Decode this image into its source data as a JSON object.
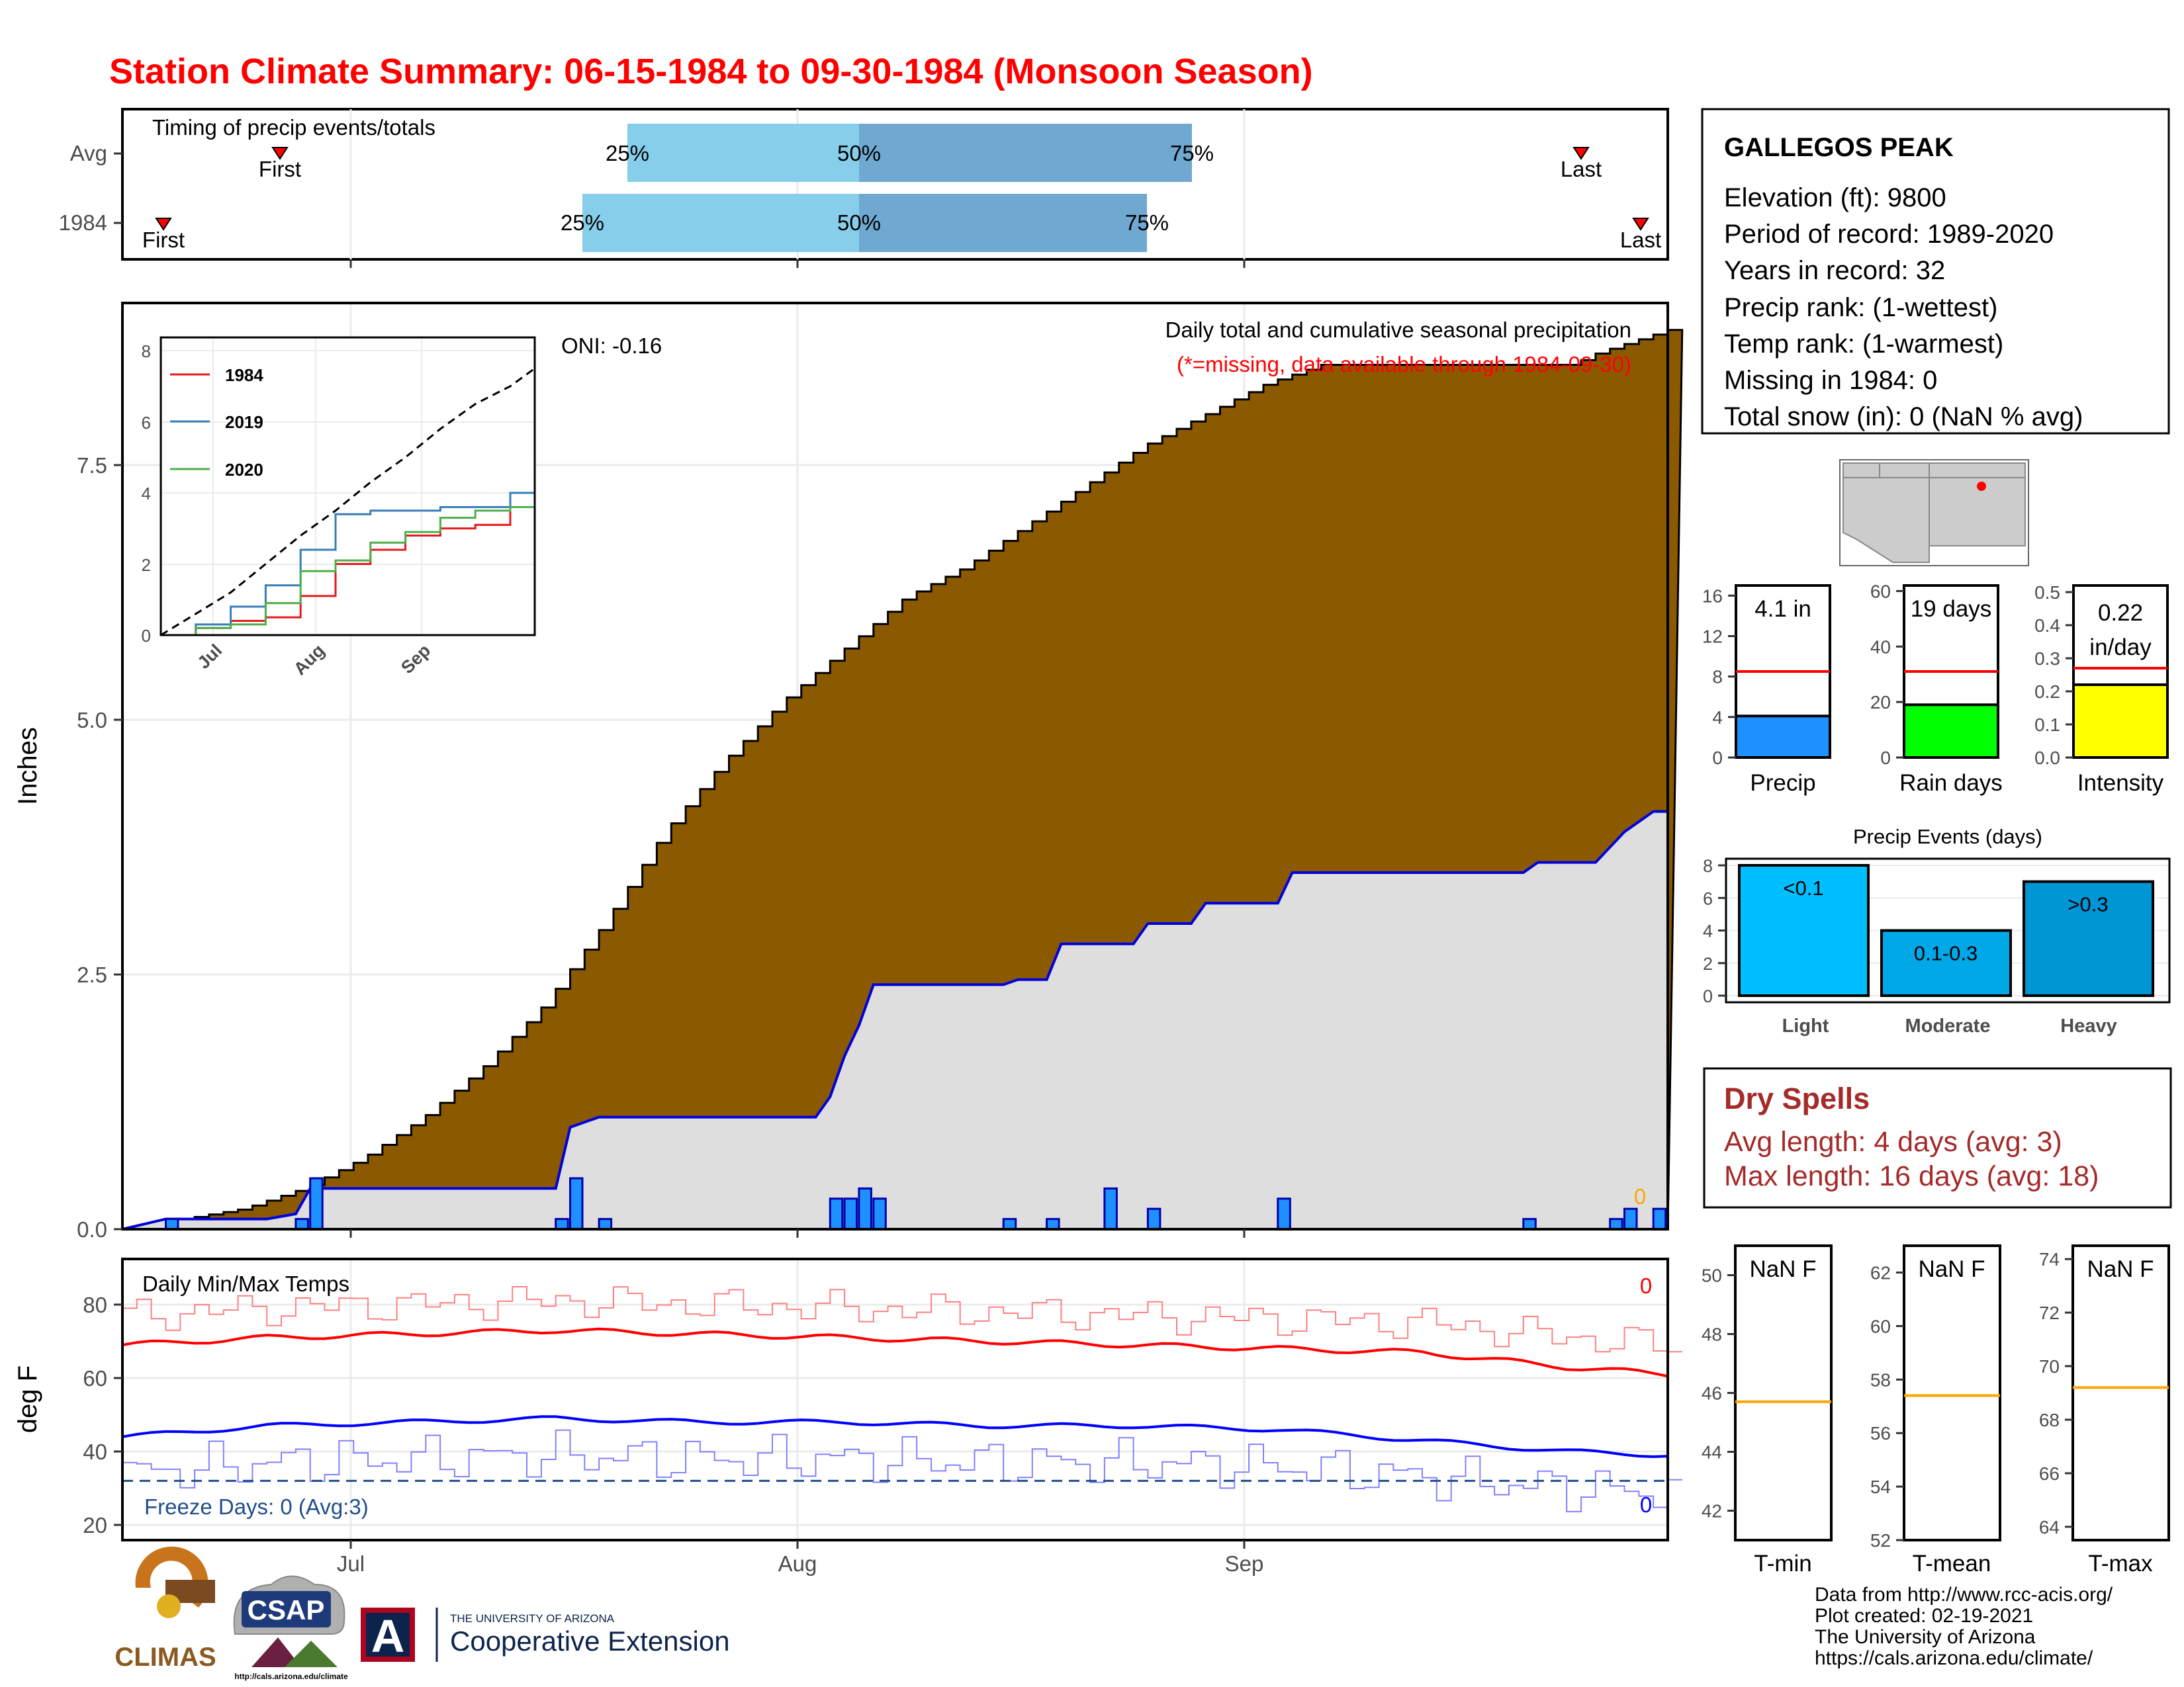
{
  "title": "Station Climate Summary: 06-15-1984 to 09-30-1984 (Monsoon Season)",
  "colors": {
    "title": "#ff0000",
    "cumulative_fill": "#8b5a00",
    "avg_fill": "#dedede",
    "avg_line": "#0000dd",
    "bars": "#1e90ff",
    "timing_light": "#87ceeb",
    "timing_dark": "#6fa8d0",
    "dry_spells": "#a52a2a",
    "tmax": "#ff0000",
    "tmin": "#0000ff",
    "series_1984": "#e41a1c",
    "series_2019": "#377eb8",
    "series_2020": "#4daf4a",
    "precip_bar": "#1e90ff",
    "rain_days_bar": "#00ff00",
    "intensity_bar": "#ffff00",
    "events_light": "#00bfff",
    "events_moderate": "#00a8e8",
    "events_heavy": "#0096d6",
    "temp_avg_line": "#ffa500"
  },
  "timing": {
    "title": "Timing of precip events/totals",
    "rows": [
      {
        "label": "Avg",
        "first": "First",
        "last": "Last",
        "q25": "25%",
        "q50": "50%",
        "q75": "75%"
      },
      {
        "label": "1984",
        "first": "First",
        "last": "Last",
        "q25": "25%",
        "q50": "50%",
        "q75": "75%"
      }
    ]
  },
  "main": {
    "ylabel": "Inches",
    "oni": "ONI: -0.16",
    "note1": "Daily total and cumulative seasonal precipitation",
    "note2": "(*=missing, data available through 1984-09-30)",
    "missing_count": "0",
    "yticks": [
      "0.0",
      "2.5",
      "5.0",
      "7.5"
    ],
    "months": [
      "Jul",
      "Aug",
      "Sep"
    ]
  },
  "inset": {
    "legend": [
      "1984",
      "2019",
      "2020"
    ],
    "yticks": [
      "0",
      "2",
      "4",
      "6",
      "8"
    ],
    "months": [
      "Jul",
      "Aug",
      "Sep"
    ]
  },
  "temps": {
    "title": "Daily Min/Max Temps",
    "ylabel": "deg F",
    "freeze": "Freeze Days: 0 (Avg:3)",
    "yticks": [
      "20",
      "40",
      "60",
      "80"
    ],
    "max_missing": "0",
    "min_missing": "0",
    "months": [
      "Jul",
      "Aug",
      "Sep"
    ]
  },
  "station": {
    "name": "GALLEGOS PEAK",
    "lines": [
      "Elevation (ft): 9800",
      "Period of record: 1989-2020",
      "Years in record: 32",
      "Precip rank:  (1-wettest)",
      "Temp rank:  (1-warmest)",
      "Missing in 1984: 0",
      "Total snow (in): 0 (NaN % avg)"
    ]
  },
  "mini_bars": [
    {
      "label": "Precip",
      "value_text": "4.1 in",
      "yticks": [
        "0",
        "4",
        "8",
        "12",
        "16"
      ]
    },
    {
      "label": "Rain days",
      "value_text": "19 days",
      "yticks": [
        "0",
        "20",
        "40",
        "60"
      ]
    },
    {
      "label": "Intensity",
      "value_text_1": "0.22",
      "value_text_2": "in/day",
      "yticks": [
        "0.0",
        "0.1",
        "0.2",
        "0.3",
        "0.4",
        "0.5"
      ]
    }
  ],
  "events": {
    "title": "Precip Events (days)",
    "yticks": [
      "0",
      "2",
      "4",
      "6",
      "8"
    ],
    "categories": [
      "Light",
      "Moderate",
      "Heavy"
    ],
    "labels": [
      "<0.1",
      "0.1-0.3",
      ">0.3"
    ]
  },
  "dry_spells": {
    "title": "Dry Spells",
    "avg": "Avg length: 4 days (avg: 3)",
    "max": "Max length: 16 days (avg: 18)"
  },
  "temp_panels": [
    {
      "label": "T-min",
      "value_text": "NaN F",
      "yticks": [
        "42",
        "44",
        "46",
        "48",
        "50"
      ]
    },
    {
      "label": "T-mean",
      "value_text": "NaN F",
      "yticks": [
        "52",
        "54",
        "56",
        "58",
        "60",
        "62"
      ]
    },
    {
      "label": "T-max",
      "value_text": "NaN F",
      "yticks": [
        "64",
        "66",
        "68",
        "70",
        "72",
        "74"
      ]
    }
  ],
  "credits": [
    "Data from http://www.rcc-acis.org/",
    "Plot created: 02-19-2021",
    "The University of Arizona",
    "https://cals.arizona.edu/climate/"
  ],
  "logos": {
    "climas": "CLIMAS",
    "csap": "CSAP",
    "csap_url": "http://cals.arizona.edu/climate",
    "ua_letter": "A",
    "ua_line1": "THE UNIVERSITY OF ARIZONA",
    "ua_line2": "Cooperative Extension"
  },
  "chart_data": [
    {
      "type": "area",
      "title": "Daily total and cumulative seasonal precipitation",
      "ylabel": "Inches",
      "ylim": [
        0,
        9.1
      ],
      "x_range": [
        "1984-06-15",
        "1984-09-30"
      ],
      "cumulative_avg_knots": [
        [
          0,
          0
        ],
        [
          10,
          0.1
        ],
        [
          20,
          0.2
        ],
        [
          30,
          0.4
        ],
        [
          40,
          0.7
        ],
        [
          50,
          1.1
        ],
        [
          60,
          1.6
        ],
        [
          70,
          2.2
        ],
        [
          80,
          3.0
        ],
        [
          90,
          3.9
        ],
        [
          100,
          4.6
        ],
        [
          110,
          5.2
        ],
        [
          120,
          5.7
        ],
        [
          130,
          6.2
        ],
        [
          140,
          6.5
        ],
        [
          150,
          6.9
        ],
        [
          160,
          7.3
        ],
        [
          170,
          7.7
        ],
        [
          180,
          8.0
        ],
        [
          190,
          8.3
        ],
        [
          200,
          8.5
        ],
        [
          208,
          8.3
        ],
        [
          214,
          8.2
        ],
        [
          215,
          8.05
        ],
        [
          216,
          7.95
        ],
        [
          225,
          8.05
        ],
        [
          232,
          8.25
        ],
        [
          245,
          8.6
        ],
        [
          258,
          8.85
        ]
      ],
      "cumulative_avg_note": "x in days from 1984-06-15 on a 0-107 scale multiplied by 2.4",
      "cumulative_1984_steps": [
        [
          0,
          0
        ],
        [
          3,
          0.1
        ],
        [
          10,
          0.1
        ],
        [
          12,
          0.15
        ],
        [
          13,
          0.4
        ],
        [
          30,
          0.4
        ],
        [
          31,
          1.0
        ],
        [
          33,
          1.1
        ],
        [
          48,
          1.1
        ],
        [
          49,
          1.3
        ],
        [
          50,
          1.7
        ],
        [
          51,
          2.0
        ],
        [
          52,
          2.4
        ],
        [
          61,
          2.4
        ],
        [
          62,
          2.45
        ],
        [
          64,
          2.45
        ],
        [
          65,
          2.8
        ],
        [
          70,
          2.8
        ],
        [
          71,
          3.0
        ],
        [
          74,
          3.0
        ],
        [
          75,
          3.2
        ],
        [
          80,
          3.2
        ],
        [
          81,
          3.5
        ],
        [
          97,
          3.5
        ],
        [
          98,
          3.6
        ],
        [
          102,
          3.6
        ],
        [
          103,
          3.75
        ],
        [
          104,
          3.9
        ],
        [
          106,
          4.1
        ],
        [
          107,
          4.1
        ]
      ],
      "daily_1984": [
        [
          3,
          0.1
        ],
        [
          12,
          0.1
        ],
        [
          13,
          0.5
        ],
        [
          30,
          0.1
        ],
        [
          31,
          0.5
        ],
        [
          33,
          0.1
        ],
        [
          49,
          0.3
        ],
        [
          50,
          0.3
        ],
        [
          51,
          0.4
        ],
        [
          52,
          0.3
        ],
        [
          61,
          0.1
        ],
        [
          64,
          0.1
        ],
        [
          68,
          0.4
        ],
        [
          71,
          0.2
        ],
        [
          80,
          0.3
        ],
        [
          97,
          0.1
        ],
        [
          103,
          0.1
        ],
        [
          104,
          0.2
        ],
        [
          106,
          0.2
        ]
      ]
    },
    {
      "type": "line",
      "title": "",
      "series": [
        {
          "name": "1984",
          "points": [
            [
              0,
              0
            ],
            [
              10,
              0.2
            ],
            [
              20,
              0.4
            ],
            [
              30,
              0.5
            ],
            [
              40,
              1.1
            ],
            [
              50,
              2.0
            ],
            [
              60,
              2.4
            ],
            [
              70,
              2.8
            ],
            [
              80,
              3.0
            ],
            [
              90,
              3.1
            ],
            [
              100,
              3.6
            ],
            [
              107,
              4.1
            ]
          ]
        },
        {
          "name": "2019",
          "points": [
            [
              0,
              0
            ],
            [
              10,
              0.3
            ],
            [
              20,
              0.8
            ],
            [
              30,
              1.4
            ],
            [
              40,
              2.4
            ],
            [
              50,
              3.4
            ],
            [
              60,
              3.5
            ],
            [
              70,
              3.5
            ],
            [
              80,
              3.6
            ],
            [
              90,
              3.6
            ],
            [
              100,
              4.0
            ],
            [
              107,
              4.2
            ]
          ]
        },
        {
          "name": "2020",
          "points": [
            [
              0,
              0
            ],
            [
              10,
              0.2
            ],
            [
              20,
              0.3
            ],
            [
              30,
              0.9
            ],
            [
              40,
              1.8
            ],
            [
              50,
              2.1
            ],
            [
              60,
              2.6
            ],
            [
              70,
              2.9
            ],
            [
              80,
              3.3
            ],
            [
              90,
              3.5
            ],
            [
              100,
              3.6
            ],
            [
              107,
              3.6
            ]
          ]
        },
        {
          "name": "",
          "points": [
            [
              0,
              0
            ],
            [
              10,
              0.6
            ],
            [
              20,
              1.2
            ],
            [
              30,
              2.0
            ],
            [
              40,
              2.8
            ],
            [
              50,
              3.5
            ],
            [
              60,
              4.3
            ],
            [
              70,
              5.0
            ],
            [
              80,
              5.8
            ],
            [
              90,
              6.5
            ],
            [
              100,
              7.0
            ],
            [
              107,
              7.5
            ]
          ]
        }
      ],
      "ylim": [
        0,
        8.5
      ]
    },
    {
      "type": "line",
      "title": "Daily Min/Max Temps",
      "ylabel": "deg F",
      "ylim": [
        17,
        89
      ],
      "series": [
        {
          "name": "",
          "points": [
            [
              0,
              69
            ],
            [
              10,
              71
            ],
            [
              20,
              72
            ],
            [
              30,
              73
            ],
            [
              40,
              72
            ],
            [
              50,
              71
            ],
            [
              60,
              70
            ],
            [
              70,
              69
            ],
            [
              80,
              68
            ],
            [
              90,
              67
            ],
            [
              95,
              65
            ],
            [
              100,
              63
            ],
            [
              107,
              61
            ]
          ]
        },
        {
          "name": "",
          "points": [
            [
              0,
              44
            ],
            [
              10,
              47
            ],
            [
              20,
              48
            ],
            [
              30,
              49
            ],
            [
              40,
              48
            ],
            [
              50,
              48
            ],
            [
              60,
              47
            ],
            [
              70,
              47
            ],
            [
              80,
              46
            ],
            [
              90,
              43
            ],
            [
              100,
              40
            ],
            [
              107,
              39
            ]
          ]
        }
      ],
      "freeze_line": 32
    },
    {
      "type": "bar",
      "categories": [
        "Precip"
      ],
      "values": [
        4.1
      ],
      "avg": 8.5,
      "ylim": [
        0,
        17
      ]
    },
    {
      "type": "bar",
      "categories": [
        "Rain days"
      ],
      "values": [
        19
      ],
      "avg": 31,
      "ylim": [
        0,
        62
      ]
    },
    {
      "type": "bar",
      "categories": [
        "Intensity"
      ],
      "values": [
        0.22
      ],
      "avg": 0.27,
      "ylim": [
        0,
        0.52
      ]
    },
    {
      "type": "bar",
      "title": "Precip Events (days)",
      "categories": [
        "Light",
        "Moderate",
        "Heavy"
      ],
      "values": [
        8,
        4,
        7
      ],
      "ylim": [
        0,
        8.5
      ]
    },
    {
      "type": "line",
      "categories": [
        "T-min"
      ],
      "avg": 45.7,
      "ylim": [
        41,
        51
      ]
    },
    {
      "type": "line",
      "categories": [
        "T-mean"
      ],
      "avg": 57.4,
      "ylim": [
        52,
        63
      ]
    },
    {
      "type": "line",
      "categories": [
        "T-max"
      ],
      "avg": 69.2,
      "ylim": [
        63.5,
        74.5
      ]
    }
  ]
}
